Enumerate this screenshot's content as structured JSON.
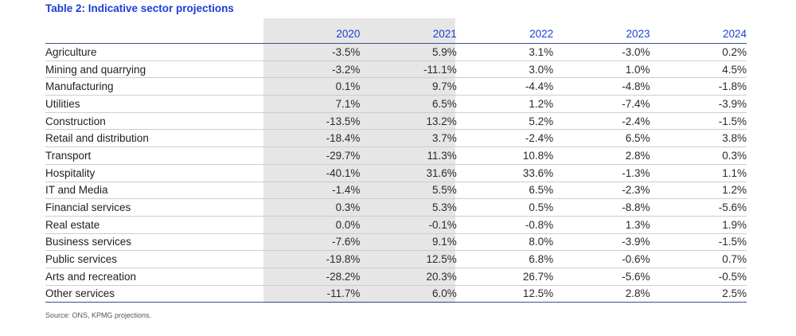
{
  "title": "Table 2: Indicative sector projections",
  "columns": [
    "2020",
    "2021",
    "2022",
    "2023",
    "2024"
  ],
  "rows": [
    {
      "sector": "Agriculture",
      "values": [
        "-3.5%",
        "5.9%",
        "3.1%",
        "-3.0%",
        "0.2%"
      ]
    },
    {
      "sector": "Mining and quarrying",
      "values": [
        "-3.2%",
        "-11.1%",
        "3.0%",
        "1.0%",
        "4.5%"
      ]
    },
    {
      "sector": "Manufacturing",
      "values": [
        "0.1%",
        "9.7%",
        "-4.4%",
        "-4.8%",
        "-1.8%"
      ]
    },
    {
      "sector": "Utilities",
      "values": [
        "7.1%",
        "6.5%",
        "1.2%",
        "-7.4%",
        "-3.9%"
      ]
    },
    {
      "sector": "Construction",
      "values": [
        "-13.5%",
        "13.2%",
        "5.2%",
        "-2.4%",
        "-1.5%"
      ]
    },
    {
      "sector": "Retail and distribution",
      "values": [
        "-18.4%",
        "3.7%",
        "-2.4%",
        "6.5%",
        "3.8%"
      ]
    },
    {
      "sector": "Transport",
      "values": [
        "-29.7%",
        "11.3%",
        "10.8%",
        "2.8%",
        "0.3%"
      ]
    },
    {
      "sector": "Hospitality",
      "values": [
        "-40.1%",
        "31.6%",
        "33.6%",
        "-1.3%",
        "1.1%"
      ]
    },
    {
      "sector": "IT and Media",
      "values": [
        "-1.4%",
        "5.5%",
        "6.5%",
        "-2.3%",
        "1.2%"
      ]
    },
    {
      "sector": "Financial services",
      "values": [
        "0.3%",
        "5.3%",
        "0.5%",
        "-8.8%",
        "-5.6%"
      ]
    },
    {
      "sector": "Real estate",
      "values": [
        "0.0%",
        "-0.1%",
        "-0.8%",
        "1.3%",
        "1.9%"
      ]
    },
    {
      "sector": "Business services",
      "values": [
        "-7.6%",
        "9.1%",
        "8.0%",
        "-3.9%",
        "-1.5%"
      ]
    },
    {
      "sector": "Public services",
      "values": [
        "-19.8%",
        "12.5%",
        "6.8%",
        "-0.6%",
        "0.7%"
      ]
    },
    {
      "sector": "Arts and recreation",
      "values": [
        "-28.2%",
        "20.3%",
        "26.7%",
        "-5.6%",
        "-0.5%"
      ]
    },
    {
      "sector": "Other services",
      "values": [
        "-11.7%",
        "6.0%",
        "12.5%",
        "2.8%",
        "2.5%"
      ]
    }
  ],
  "source": "Source: ONS, KPMG projections.",
  "colors": {
    "accent": "#1a3fd6",
    "shade": "#e6e6e6"
  }
}
